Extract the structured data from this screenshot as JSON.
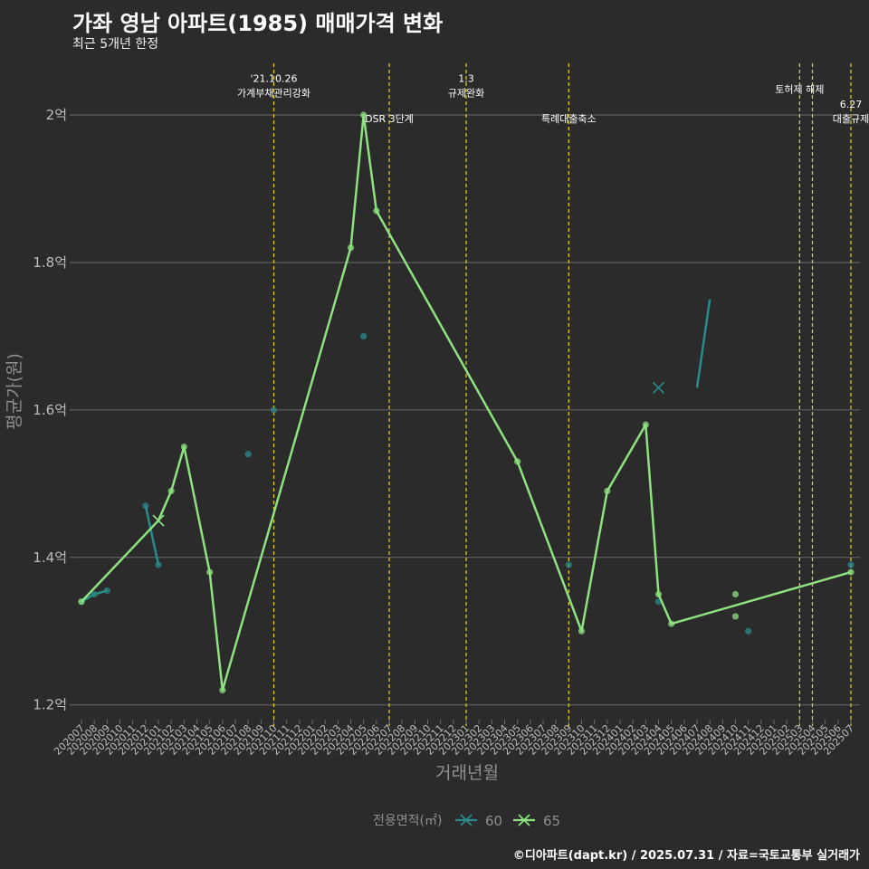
{
  "title": "가좌 영남 아파트(1985) 매매가격 변화",
  "subtitle": "최근 5개년 한정",
  "caption": "©디아파트(dapt.kr) / 2025.07.31 / 자료=국토교통부 실거래가",
  "colors": {
    "s60": "#2a8b8b",
    "s65": "#8ee27f",
    "vline": "#e6d21e",
    "grid": "#6b6b6b",
    "bg": "#2b2b2c",
    "text": "#bdbdbd"
  },
  "chart_data": {
    "type": "line",
    "title": "가좌 영남 아파트(1985) 매매가격 변화",
    "xlabel": "거래년월",
    "ylabel": "평균가(원)",
    "ylim": [
      1.18,
      2.07
    ],
    "yticks": [
      1.2,
      1.4,
      1.6,
      1.8,
      2.0
    ],
    "ytick_labels": [
      "1.2억",
      "1.4억",
      "1.6억",
      "1.8억",
      "2억"
    ],
    "categories": [
      "202007",
      "202008",
      "202009",
      "202010",
      "202011",
      "202012",
      "202101",
      "202102",
      "202103",
      "202104",
      "202105",
      "202106",
      "202107",
      "202108",
      "202109",
      "202110",
      "202111",
      "202112",
      "202201",
      "202202",
      "202203",
      "202204",
      "202205",
      "202206",
      "202207",
      "202208",
      "202209",
      "202210",
      "202211",
      "202212",
      "202301",
      "202302",
      "202303",
      "202304",
      "202305",
      "202306",
      "202307",
      "202308",
      "202309",
      "202310",
      "202311",
      "202312",
      "202401",
      "202402",
      "202403",
      "202404",
      "202405",
      "202406",
      "202407",
      "202408",
      "202409",
      "202410",
      "202411",
      "202412",
      "202501",
      "202502",
      "202503",
      "202504",
      "202505",
      "202506",
      "202507"
    ],
    "legend_title": "전용면적(㎡)",
    "series": [
      {
        "name": "60",
        "color": "#2a8b8b",
        "line": [
          [
            0,
            1.34
          ],
          [
            1,
            1.35
          ],
          [
            2,
            1.355
          ]
        ],
        "line2": [
          [
            5,
            1.47
          ],
          [
            6,
            1.39
          ]
        ],
        "line3": [
          [
            48,
            1.63
          ],
          [
            49,
            1.75
          ]
        ],
        "points": [
          [
            0,
            1.34
          ],
          [
            1,
            1.35
          ],
          [
            2,
            1.355
          ],
          [
            5,
            1.47
          ],
          [
            6,
            1.39
          ],
          [
            13,
            1.54
          ],
          [
            15,
            1.6
          ],
          [
            22,
            1.7
          ],
          [
            38,
            1.39
          ],
          [
            45,
            1.34
          ],
          [
            52,
            1.3
          ],
          [
            60,
            1.39
          ]
        ],
        "mean_marks": [
          [
            6,
            1.45
          ],
          [
            45,
            1.63
          ]
        ]
      },
      {
        "name": "65",
        "color": "#8ee27f",
        "line": [
          [
            0,
            1.34
          ],
          [
            6,
            1.45
          ],
          [
            7,
            1.49
          ],
          [
            8,
            1.55
          ],
          [
            10,
            1.38
          ],
          [
            11,
            1.22
          ],
          [
            21,
            1.82
          ],
          [
            22,
            2.0
          ],
          [
            23,
            1.87
          ],
          [
            34,
            1.53
          ],
          [
            39,
            1.3
          ],
          [
            41,
            1.49
          ],
          [
            44,
            1.58
          ],
          [
            45,
            1.35
          ],
          [
            46,
            1.31
          ],
          [
            60,
            1.38
          ]
        ],
        "points": [
          [
            0,
            1.34
          ],
          [
            7,
            1.49
          ],
          [
            8,
            1.55
          ],
          [
            10,
            1.38
          ],
          [
            11,
            1.22
          ],
          [
            21,
            1.82
          ],
          [
            22,
            2.0
          ],
          [
            23,
            1.87
          ],
          [
            34,
            1.53
          ],
          [
            39,
            1.3
          ],
          [
            41,
            1.49
          ],
          [
            44,
            1.58
          ],
          [
            45,
            1.35
          ],
          [
            46,
            1.31
          ],
          [
            51,
            1.35
          ],
          [
            51,
            1.32
          ],
          [
            60,
            1.38
          ]
        ],
        "mean_marks": [
          [
            6,
            1.45
          ]
        ]
      }
    ],
    "events": [
      {
        "x": 15.0,
        "lines": [
          "'21.10.26",
          "가계부채관리강화"
        ],
        "label_y": 2.03
      },
      {
        "x": 24.0,
        "lines": [
          "DSR 3단계"
        ],
        "label_y": 1.995
      },
      {
        "x": 30.0,
        "lines": [
          "1.3",
          "규제완화"
        ],
        "label_y": 2.03
      },
      {
        "x": 38.0,
        "lines": [
          "특례대출축소"
        ],
        "label_y": 1.995
      },
      {
        "x": 56.0,
        "lines": [
          "토허제 해제"
        ],
        "label_y": 2.035
      },
      {
        "x": 57.0,
        "lines": [],
        "label_y": 2.0
      },
      {
        "x": 60.0,
        "lines": [
          "6.27",
          "대출규제"
        ],
        "label_y": 1.995
      }
    ]
  }
}
